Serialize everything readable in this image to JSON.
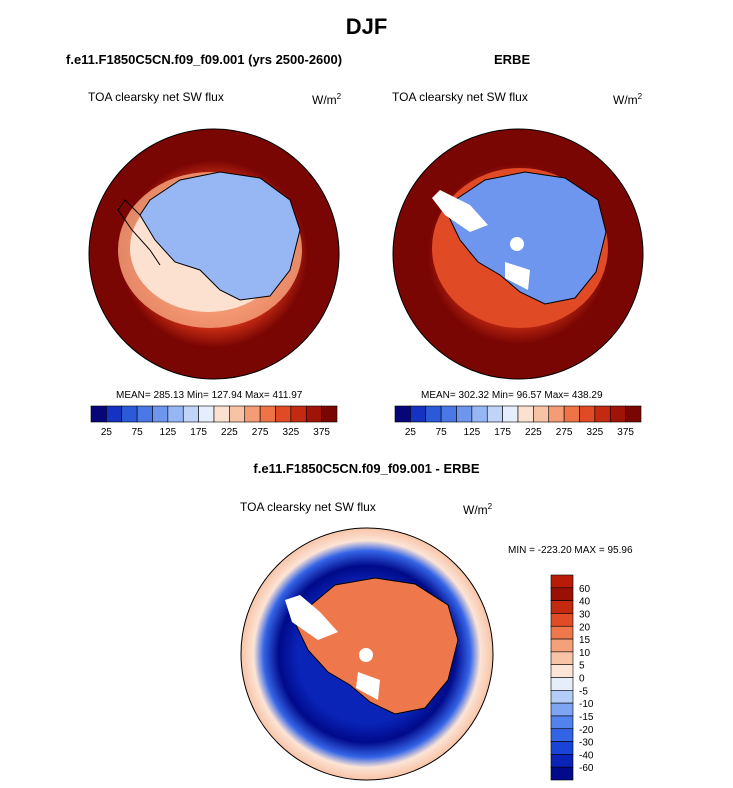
{
  "title": "DJF",
  "left_panel": {
    "case": "f.e11.F1850C5CN.f09_f09.001 (yrs 2500-2600)",
    "variable": "TOA clearsky net SW flux",
    "units_base": "W/m",
    "units_exp": "2",
    "stats": "MEAN= 285.13  Min= 127.94  Max= 411.97"
  },
  "right_panel": {
    "case": "ERBE",
    "variable": "TOA clearsky net SW flux",
    "units_base": "W/m",
    "units_exp": "2",
    "stats": "MEAN= 302.32  Min=  96.57  Max= 438.29"
  },
  "diff_panel": {
    "case": "f.e11.F1850C5CN.f09_f09.001 - ERBE",
    "variable": "TOA clearsky net SW flux",
    "units_base": "W/m",
    "units_exp": "2",
    "stats": "MIN = -223.20 MAX =  95.96"
  },
  "chart_data": [
    {
      "type": "heatmap",
      "projection": "south polar stereographic",
      "title": "f.e11.F1850C5CN.f09_f09.001 (yrs 2500-2600)",
      "variable": "TOA clearsky net SW flux",
      "units": "W/m2",
      "mean": 285.13,
      "min": 127.94,
      "max": 411.97,
      "colorbar_levels": [
        25,
        50,
        75,
        100,
        125,
        150,
        175,
        200,
        225,
        250,
        275,
        300,
        325,
        350,
        375
      ],
      "colorbar_labels": [
        "25",
        "75",
        "125",
        "175",
        "225",
        "275",
        "325",
        "375"
      ],
      "colorbar_colors": [
        "#06067a",
        "#1632c0",
        "#2a5ad8",
        "#4a78e6",
        "#6e96ee",
        "#96b6f4",
        "#c0d4f8",
        "#e4eefc",
        "#fce0d0",
        "#f8c2a4",
        "#f49c76",
        "#ee7448",
        "#e04a24",
        "#c42a12",
        "#a01408",
        "#7a0604"
      ]
    },
    {
      "type": "heatmap",
      "projection": "south polar stereographic",
      "title": "ERBE",
      "variable": "TOA clearsky net SW flux",
      "units": "W/m2",
      "mean": 302.32,
      "min": 96.57,
      "max": 438.29,
      "colorbar_levels": [
        25,
        50,
        75,
        100,
        125,
        150,
        175,
        200,
        225,
        250,
        275,
        300,
        325,
        350,
        375
      ],
      "colorbar_labels": [
        "25",
        "75",
        "125",
        "175",
        "225",
        "275",
        "325",
        "375"
      ],
      "colorbar_colors": [
        "#06067a",
        "#1632c0",
        "#2a5ad8",
        "#4a78e6",
        "#6e96ee",
        "#96b6f4",
        "#c0d4f8",
        "#e4eefc",
        "#fce0d0",
        "#f8c2a4",
        "#f49c76",
        "#ee7448",
        "#e04a24",
        "#c42a12",
        "#a01408",
        "#7a0604"
      ]
    },
    {
      "type": "heatmap",
      "projection": "south polar stereographic",
      "title": "f.e11.F1850C5CN.f09_f09.001 - ERBE",
      "variable": "TOA clearsky net SW flux",
      "units": "W/m2",
      "min": -223.2,
      "max": 95.96,
      "colorbar_levels": [
        -60,
        -40,
        -30,
        -20,
        -15,
        -10,
        -5,
        0,
        5,
        10,
        15,
        20,
        30,
        40,
        60
      ],
      "colorbar_labels": [
        "-60",
        "-40",
        "-30",
        "-20",
        "-15",
        "-10",
        "-5",
        "0",
        "5",
        "10",
        "15",
        "20",
        "30",
        "40",
        "60"
      ],
      "colorbar_colors": [
        "#000a8a",
        "#0a24b8",
        "#1a44d8",
        "#3464e6",
        "#5282ee",
        "#7ea4f4",
        "#b4ccf8",
        "#e6eefa",
        "#fce4d6",
        "#f8c4a8",
        "#f4a07a",
        "#ee784c",
        "#e04c26",
        "#c42a10",
        "#9a1004",
        "#b81c06"
      ]
    }
  ]
}
